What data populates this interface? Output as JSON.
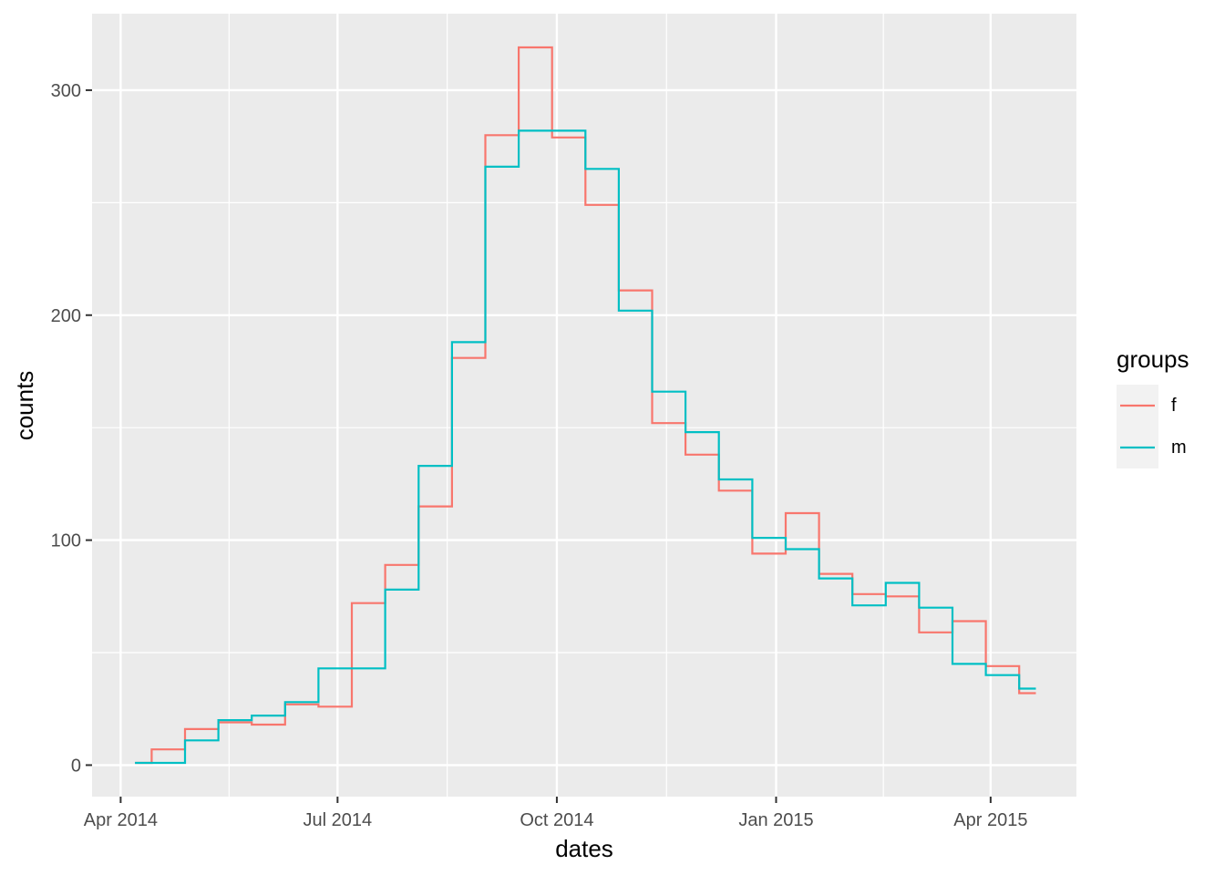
{
  "chart_data": {
    "type": "line",
    "subtype": "step",
    "title": "",
    "xlabel": "dates",
    "ylabel": "counts",
    "x_tick_labels": [
      "Apr 2014",
      "Jul 2014",
      "Oct 2014",
      "Jan 2015",
      "Apr 2015"
    ],
    "x_tick_dates": [
      "2014-04-01",
      "2014-07-01",
      "2014-10-01",
      "2015-01-01",
      "2015-04-01"
    ],
    "y_tick_labels": [
      "0",
      "100",
      "200",
      "300"
    ],
    "y_ticks": [
      0,
      100,
      200,
      300
    ],
    "xlim": [
      "2014-03-20",
      "2015-05-07"
    ],
    "ylim": [
      -14,
      334
    ],
    "grid": true,
    "legend": {
      "title": "groups",
      "position": "right"
    },
    "x": [
      "2014-04-07",
      "2014-04-21",
      "2014-05-05",
      "2014-05-19",
      "2014-06-02",
      "2014-06-16",
      "2014-06-30",
      "2014-07-14",
      "2014-07-28",
      "2014-08-11",
      "2014-08-25",
      "2014-09-08",
      "2014-09-22",
      "2014-10-06",
      "2014-10-20",
      "2014-11-03",
      "2014-11-17",
      "2014-12-01",
      "2014-12-15",
      "2014-12-29",
      "2015-01-12",
      "2015-01-26",
      "2015-02-09",
      "2015-02-23",
      "2015-03-09",
      "2015-03-23",
      "2015-04-06",
      "2015-04-20"
    ],
    "series": [
      {
        "name": "f",
        "color": "#F8766D",
        "values": [
          1,
          7,
          16,
          19,
          18,
          27,
          26,
          72,
          89,
          115,
          181,
          280,
          319,
          279,
          249,
          211,
          152,
          138,
          122,
          94,
          112,
          85,
          76,
          75,
          59,
          64,
          44,
          32
        ]
      },
      {
        "name": "m",
        "color": "#00BFC4",
        "values": [
          1,
          1,
          11,
          20,
          22,
          28,
          43,
          43,
          78,
          133,
          188,
          266,
          282,
          282,
          265,
          202,
          166,
          148,
          127,
          101,
          96,
          83,
          71,
          81,
          70,
          45,
          40,
          34
        ]
      }
    ]
  }
}
